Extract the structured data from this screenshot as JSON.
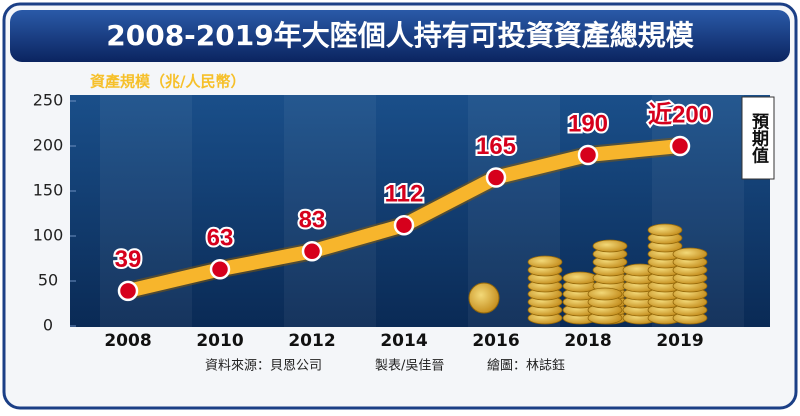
{
  "chart_data": {
    "type": "line",
    "title": "2008-2019年大陸個人持有可投資資產總規模",
    "y_label": "資產規模（兆/人民幣）",
    "categories": [
      "2008",
      "2010",
      "2012",
      "2014",
      "2016",
      "2018",
      "2019"
    ],
    "values": [
      39,
      63,
      83,
      112,
      165,
      190,
      200
    ],
    "value_labels": [
      "39",
      "63",
      "83",
      "112",
      "165",
      "190",
      "近200"
    ],
    "annotation": "預期值",
    "color": "#f7b52c",
    "marker_color": "#d6001c",
    "ylim": [
      0,
      250
    ],
    "yticks": [
      0,
      50,
      100,
      150,
      200,
      250
    ],
    "sources": [
      "資料來源：貝恩公司",
      "製表/吳佳晉",
      "繪圖：林誌鈺"
    ]
  }
}
